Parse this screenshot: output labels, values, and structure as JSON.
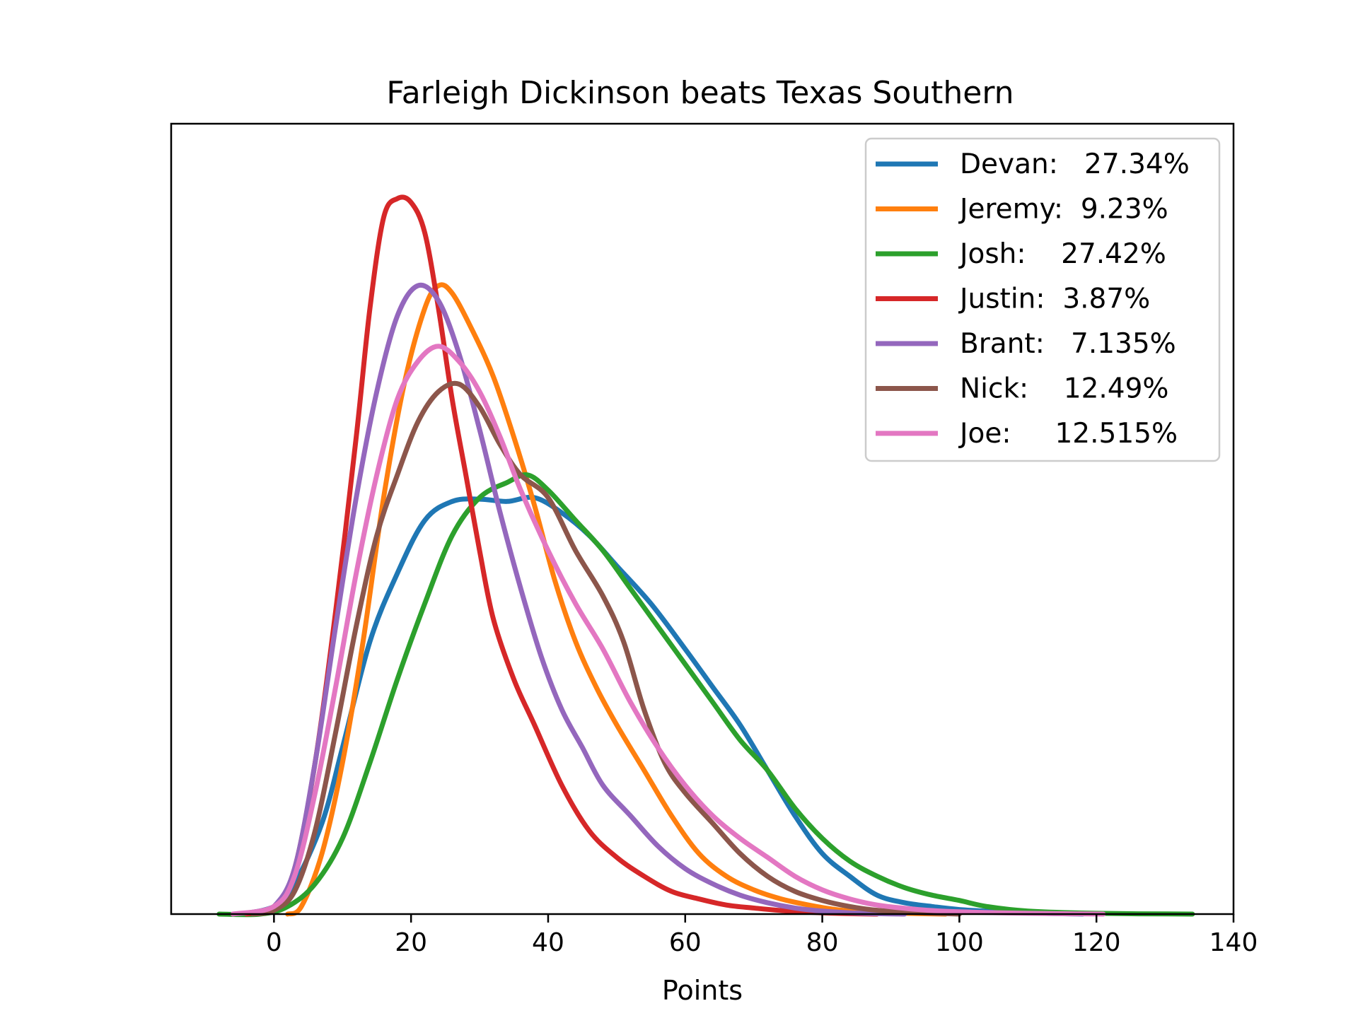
{
  "chart_data": {
    "type": "line",
    "title": "Farleigh Dickinson beats Texas Southern",
    "xlabel": "Points",
    "ylabel": "",
    "xlim": [
      -15,
      140
    ],
    "ylim": [
      0,
      1.0
    ],
    "x_ticks": [
      0,
      20,
      40,
      60,
      80,
      100,
      120,
      140
    ],
    "x_tick_labels": [
      "0",
      "20",
      "40",
      "60",
      "80",
      "100",
      "120",
      "140"
    ],
    "y_ticks_shown": false,
    "grid": false,
    "legend_position": "top-right",
    "series": [
      {
        "name": "Devan:   27.34%",
        "color": "#1f77b4",
        "points": [
          [
            -5,
            0
          ],
          [
            0,
            0.01
          ],
          [
            3,
            0.04
          ],
          [
            7,
            0.12
          ],
          [
            10,
            0.22
          ],
          [
            14,
            0.36
          ],
          [
            18,
            0.45
          ],
          [
            22,
            0.52
          ],
          [
            26,
            0.545
          ],
          [
            30,
            0.548
          ],
          [
            34,
            0.545
          ],
          [
            38,
            0.55
          ],
          [
            42,
            0.53
          ],
          [
            46,
            0.5
          ],
          [
            50,
            0.46
          ],
          [
            55,
            0.41
          ],
          [
            60,
            0.35
          ],
          [
            64,
            0.3
          ],
          [
            68,
            0.25
          ],
          [
            72,
            0.19
          ],
          [
            76,
            0.13
          ],
          [
            80,
            0.08
          ],
          [
            84,
            0.05
          ],
          [
            88,
            0.025
          ],
          [
            92,
            0.015
          ],
          [
            96,
            0.01
          ],
          [
            100,
            0.006
          ],
          [
            106,
            0.003
          ],
          [
            112,
            0.001
          ],
          [
            118,
            0
          ]
        ]
      },
      {
        "name": "Jeremy:  9.23%",
        "color": "#ff7f0e",
        "points": [
          [
            2,
            0
          ],
          [
            4,
            0.01
          ],
          [
            7,
            0.08
          ],
          [
            10,
            0.2
          ],
          [
            13,
            0.36
          ],
          [
            16,
            0.55
          ],
          [
            19,
            0.7
          ],
          [
            22,
            0.8
          ],
          [
            24,
            0.83
          ],
          [
            26,
            0.82
          ],
          [
            29,
            0.77
          ],
          [
            32,
            0.71
          ],
          [
            35,
            0.63
          ],
          [
            38,
            0.54
          ],
          [
            41,
            0.44
          ],
          [
            44,
            0.36
          ],
          [
            47,
            0.3
          ],
          [
            50,
            0.25
          ],
          [
            54,
            0.19
          ],
          [
            58,
            0.13
          ],
          [
            62,
            0.08
          ],
          [
            66,
            0.05
          ],
          [
            70,
            0.032
          ],
          [
            74,
            0.02
          ],
          [
            78,
            0.012
          ],
          [
            82,
            0.006
          ],
          [
            86,
            0.003
          ],
          [
            92,
            0.001
          ],
          [
            98,
            0
          ]
        ]
      },
      {
        "name": "Josh:    27.42%",
        "color": "#2ca02c",
        "points": [
          [
            -8,
            0
          ],
          [
            -2,
            0
          ],
          [
            2,
            0.01
          ],
          [
            6,
            0.04
          ],
          [
            10,
            0.1
          ],
          [
            14,
            0.2
          ],
          [
            18,
            0.31
          ],
          [
            22,
            0.41
          ],
          [
            26,
            0.5
          ],
          [
            30,
            0.55
          ],
          [
            34,
            0.57
          ],
          [
            37,
            0.58
          ],
          [
            40,
            0.56
          ],
          [
            44,
            0.52
          ],
          [
            48,
            0.48
          ],
          [
            52,
            0.43
          ],
          [
            56,
            0.38
          ],
          [
            60,
            0.33
          ],
          [
            64,
            0.28
          ],
          [
            68,
            0.23
          ],
          [
            72,
            0.19
          ],
          [
            76,
            0.14
          ],
          [
            80,
            0.1
          ],
          [
            84,
            0.07
          ],
          [
            88,
            0.05
          ],
          [
            92,
            0.035
          ],
          [
            96,
            0.025
          ],
          [
            100,
            0.018
          ],
          [
            104,
            0.01
          ],
          [
            110,
            0.004
          ],
          [
            120,
            0.001
          ],
          [
            134,
            0
          ]
        ]
      },
      {
        "name": "Justin:  3.87%",
        "color": "#d62728",
        "points": [
          [
            -4,
            0
          ],
          [
            0,
            0.01
          ],
          [
            3,
            0.06
          ],
          [
            6,
            0.2
          ],
          [
            9,
            0.4
          ],
          [
            12,
            0.63
          ],
          [
            14,
            0.8
          ],
          [
            16,
            0.92
          ],
          [
            18,
            0.945
          ],
          [
            20,
            0.94
          ],
          [
            22,
            0.9
          ],
          [
            24,
            0.8
          ],
          [
            26,
            0.68
          ],
          [
            28,
            0.58
          ],
          [
            30,
            0.48
          ],
          [
            32,
            0.39
          ],
          [
            35,
            0.31
          ],
          [
            38,
            0.25
          ],
          [
            42,
            0.17
          ],
          [
            46,
            0.11
          ],
          [
            50,
            0.075
          ],
          [
            54,
            0.05
          ],
          [
            58,
            0.03
          ],
          [
            62,
            0.02
          ],
          [
            66,
            0.012
          ],
          [
            70,
            0.008
          ],
          [
            75,
            0.004
          ],
          [
            82,
            0.001
          ],
          [
            88,
            0
          ]
        ]
      },
      {
        "name": "Brant:   7.135%",
        "color": "#9467bd",
        "points": [
          [
            -3,
            0
          ],
          [
            0,
            0.01
          ],
          [
            3,
            0.06
          ],
          [
            6,
            0.2
          ],
          [
            9,
            0.38
          ],
          [
            12,
            0.55
          ],
          [
            15,
            0.69
          ],
          [
            18,
            0.79
          ],
          [
            21,
            0.83
          ],
          [
            24,
            0.81
          ],
          [
            27,
            0.74
          ],
          [
            30,
            0.64
          ],
          [
            33,
            0.53
          ],
          [
            36,
            0.43
          ],
          [
            39,
            0.34
          ],
          [
            42,
            0.27
          ],
          [
            45,
            0.22
          ],
          [
            48,
            0.17
          ],
          [
            52,
            0.13
          ],
          [
            56,
            0.09
          ],
          [
            60,
            0.06
          ],
          [
            64,
            0.04
          ],
          [
            68,
            0.025
          ],
          [
            72,
            0.015
          ],
          [
            76,
            0.008
          ],
          [
            80,
            0.004
          ],
          [
            86,
            0.001
          ],
          [
            92,
            0
          ]
        ]
      },
      {
        "name": "Nick:    12.49%",
        "color": "#8c564b",
        "points": [
          [
            -3,
            0
          ],
          [
            0,
            0.005
          ],
          [
            3,
            0.03
          ],
          [
            6,
            0.11
          ],
          [
            9,
            0.24
          ],
          [
            12,
            0.38
          ],
          [
            15,
            0.5
          ],
          [
            18,
            0.58
          ],
          [
            21,
            0.65
          ],
          [
            24,
            0.69
          ],
          [
            27,
            0.7
          ],
          [
            30,
            0.67
          ],
          [
            33,
            0.62
          ],
          [
            36,
            0.58
          ],
          [
            40,
            0.55
          ],
          [
            44,
            0.48
          ],
          [
            48,
            0.42
          ],
          [
            51,
            0.36
          ],
          [
            54,
            0.27
          ],
          [
            57,
            0.2
          ],
          [
            60,
            0.16
          ],
          [
            64,
            0.12
          ],
          [
            68,
            0.08
          ],
          [
            72,
            0.05
          ],
          [
            76,
            0.03
          ],
          [
            80,
            0.018
          ],
          [
            84,
            0.01
          ],
          [
            88,
            0.005
          ],
          [
            94,
            0.002
          ],
          [
            100,
            0
          ]
        ]
      },
      {
        "name": "Joe:     12.515%",
        "color": "#e377c2",
        "points": [
          [
            -6,
            0
          ],
          [
            0,
            0.01
          ],
          [
            3,
            0.05
          ],
          [
            6,
            0.16
          ],
          [
            9,
            0.3
          ],
          [
            12,
            0.45
          ],
          [
            15,
            0.58
          ],
          [
            18,
            0.68
          ],
          [
            21,
            0.73
          ],
          [
            24,
            0.75
          ],
          [
            27,
            0.73
          ],
          [
            30,
            0.69
          ],
          [
            33,
            0.63
          ],
          [
            36,
            0.56
          ],
          [
            40,
            0.48
          ],
          [
            44,
            0.41
          ],
          [
            48,
            0.35
          ],
          [
            52,
            0.28
          ],
          [
            56,
            0.22
          ],
          [
            60,
            0.17
          ],
          [
            64,
            0.13
          ],
          [
            68,
            0.1
          ],
          [
            72,
            0.075
          ],
          [
            76,
            0.05
          ],
          [
            80,
            0.032
          ],
          [
            84,
            0.02
          ],
          [
            88,
            0.012
          ],
          [
            94,
            0.006
          ],
          [
            100,
            0.003
          ],
          [
            110,
            0.001
          ],
          [
            121,
            0
          ]
        ]
      }
    ]
  }
}
